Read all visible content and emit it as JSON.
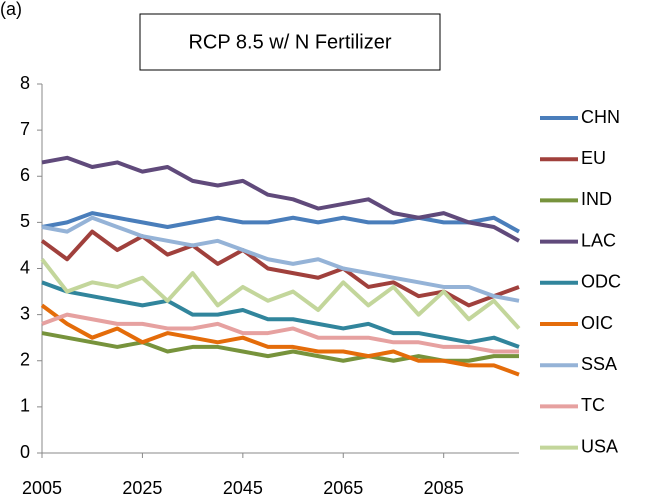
{
  "chart_data": {
    "type": "line",
    "panel_label": "(a)",
    "title": "RCP 8.5 w/ N Fertilizer",
    "x": [
      2005,
      2010,
      2015,
      2020,
      2025,
      2030,
      2035,
      2040,
      2045,
      2050,
      2055,
      2060,
      2065,
      2070,
      2075,
      2080,
      2085,
      2090,
      2095,
      2100
    ],
    "xlim": [
      2005,
      2100
    ],
    "xticks": [
      2005,
      2025,
      2045,
      2065,
      2085
    ],
    "ylim": [
      0,
      8
    ],
    "yticks": [
      0,
      1,
      2,
      3,
      4,
      5,
      6,
      7,
      8
    ],
    "grid": false,
    "legend": "right",
    "series": [
      {
        "name": "CHN",
        "color": "#4a7ebb",
        "values": [
          4.9,
          5.0,
          5.2,
          5.1,
          5.0,
          4.9,
          5.0,
          5.1,
          5.0,
          5.0,
          5.1,
          5.0,
          5.1,
          5.0,
          5.0,
          5.1,
          5.0,
          5.0,
          5.1,
          4.8
        ]
      },
      {
        "name": "EU",
        "color": "#a0403c",
        "values": [
          4.6,
          4.2,
          4.8,
          4.4,
          4.7,
          4.3,
          4.5,
          4.1,
          4.4,
          4.0,
          3.9,
          3.8,
          4.0,
          3.6,
          3.7,
          3.4,
          3.5,
          3.2,
          3.4,
          3.6
        ]
      },
      {
        "name": "IND",
        "color": "#77933c",
        "values": [
          2.6,
          2.5,
          2.4,
          2.3,
          2.4,
          2.2,
          2.3,
          2.3,
          2.2,
          2.1,
          2.2,
          2.1,
          2.0,
          2.1,
          2.0,
          2.1,
          2.0,
          2.0,
          2.1,
          2.1
        ]
      },
      {
        "name": "LAC",
        "color": "#604a7b",
        "values": [
          6.3,
          6.4,
          6.2,
          6.3,
          6.1,
          6.2,
          5.9,
          5.8,
          5.9,
          5.6,
          5.5,
          5.3,
          5.4,
          5.5,
          5.2,
          5.1,
          5.2,
          5.0,
          4.9,
          4.6
        ]
      },
      {
        "name": "ODC",
        "color": "#31859c",
        "values": [
          3.7,
          3.5,
          3.4,
          3.3,
          3.2,
          3.3,
          3.0,
          3.0,
          3.1,
          2.9,
          2.9,
          2.8,
          2.7,
          2.8,
          2.6,
          2.6,
          2.5,
          2.4,
          2.5,
          2.3
        ]
      },
      {
        "name": "OIC",
        "color": "#e46c0a",
        "values": [
          3.2,
          2.8,
          2.5,
          2.7,
          2.4,
          2.6,
          2.5,
          2.4,
          2.5,
          2.3,
          2.3,
          2.2,
          2.2,
          2.1,
          2.2,
          2.0,
          2.0,
          1.9,
          1.9,
          1.7
        ]
      },
      {
        "name": "SSA",
        "color": "#95b3d7",
        "values": [
          4.9,
          4.8,
          5.1,
          4.9,
          4.7,
          4.6,
          4.5,
          4.6,
          4.4,
          4.2,
          4.1,
          4.2,
          4.0,
          3.9,
          3.8,
          3.7,
          3.6,
          3.6,
          3.4,
          3.3
        ]
      },
      {
        "name": "TC",
        "color": "#e6a1a0",
        "values": [
          2.8,
          3.0,
          2.9,
          2.8,
          2.8,
          2.7,
          2.7,
          2.8,
          2.6,
          2.6,
          2.7,
          2.5,
          2.5,
          2.5,
          2.4,
          2.4,
          2.3,
          2.3,
          2.2,
          2.2
        ]
      },
      {
        "name": "USA",
        "color": "#c3d69b",
        "values": [
          4.2,
          3.5,
          3.7,
          3.6,
          3.8,
          3.3,
          3.9,
          3.2,
          3.6,
          3.3,
          3.5,
          3.1,
          3.7,
          3.2,
          3.6,
          3.0,
          3.5,
          2.9,
          3.3,
          2.7
        ]
      }
    ]
  }
}
